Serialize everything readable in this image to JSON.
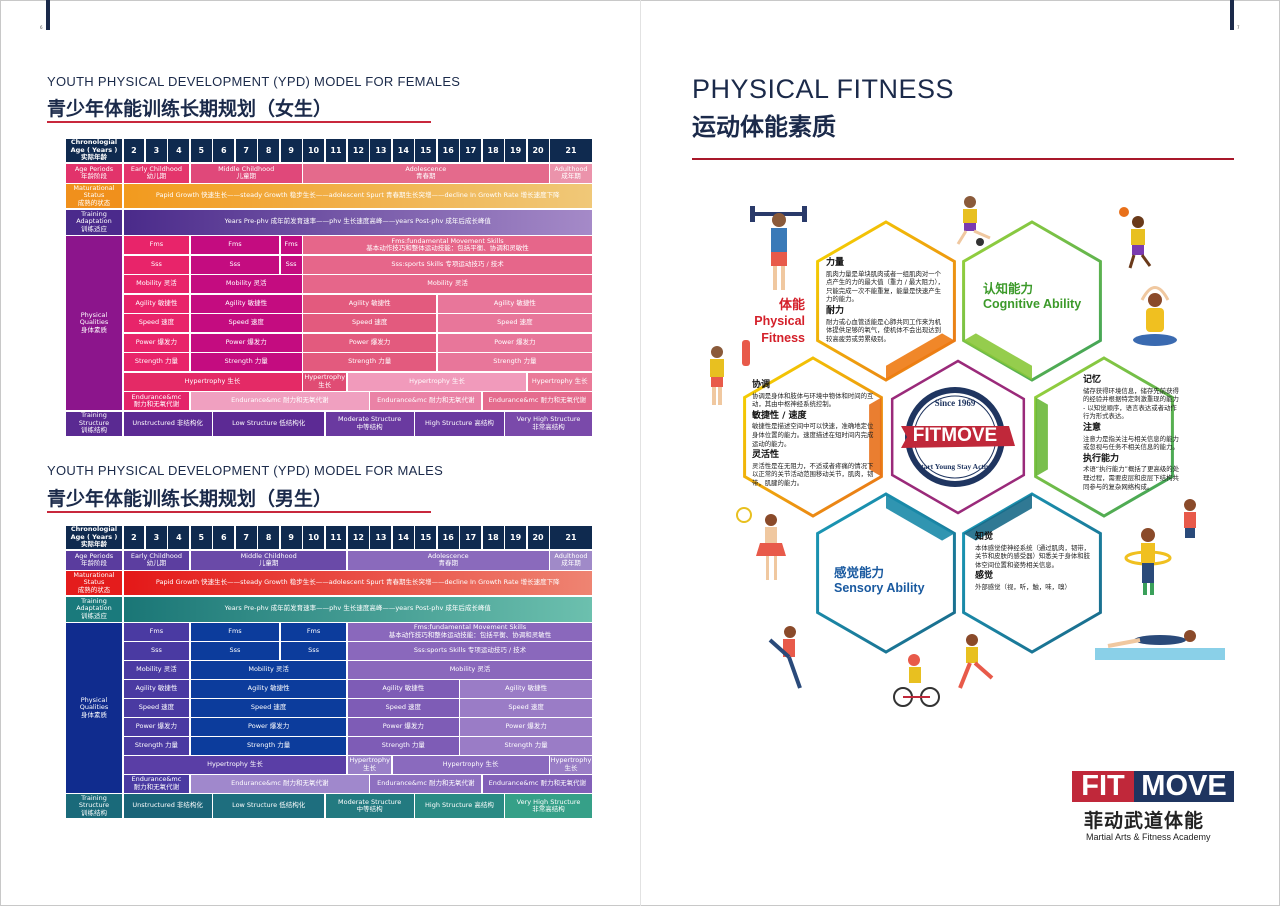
{
  "left_page": {
    "page_number": "6"
  },
  "right_page": {
    "page_number": "7"
  },
  "female": {
    "title_en": "YOUTH PHYSICAL DEVELOPMENT (YPD) MODEL FOR FEMALES",
    "title_zh": "青少年体能训练长期规划（女生）",
    "header_label": "Chronologial\nAge ( Years )\n实际年龄",
    "header_color": "#0f2a4f",
    "ages": [
      "2",
      "3",
      "4",
      "5",
      "6",
      "7",
      "8",
      "9",
      "10",
      "11",
      "12",
      "13",
      "14",
      "15",
      "16",
      "17",
      "18",
      "19",
      "20",
      "21"
    ],
    "rows_top": [
      {
        "label": "Age Periods\n年龄阶段",
        "label_color": "#e2336b",
        "cells": [
          {
            "t": "Early Childhood\n幼儿期",
            "a": [
              2,
              4
            ],
            "c": "#e4356c"
          },
          {
            "t": "Middle Childhood\n儿童期",
            "a": [
              5,
              9
            ],
            "c": "#e0487a"
          },
          {
            "t": "Adolescence\n青春期",
            "a": [
              10,
              20
            ],
            "c": "#e46a8c"
          },
          {
            "t": "Adulthood\n成年期",
            "a": [
              21,
              21
            ],
            "c": "#eb93ab"
          }
        ]
      },
      {
        "label": "Maturational\nStatus\n成熟的状态",
        "label_color": "#f0901c",
        "cells": [
          {
            "t": "Papid Growth 快速生长——steady Growth 稳步生长——adolescent Spurt 青春期生长突增——decline In Growth Rate 增长速度下降",
            "a": [
              2,
              21
            ],
            "c": "linear-gradient(90deg,#f29a1e,#f0c878)"
          }
        ]
      },
      {
        "label": "Training\nAdaptation\n训练适应",
        "label_color": "#4b2a8c",
        "cells": [
          {
            "t": "Years Pre-phv 成年前发育速率——phv 生长速度高峰——years Post-phv 成年后成长峰值",
            "a": [
              2,
              21
            ],
            "c": "linear-gradient(90deg,#4a2a8a,#a58ac8)"
          }
        ]
      }
    ],
    "physical": {
      "label": "Physical\nQualities\n身体素质",
      "label_color": "#8c158c",
      "rows": [
        [
          {
            "t": "Fms",
            "a": [
              2,
              4
            ],
            "c": "#e8246a"
          },
          {
            "t": "Fms",
            "a": [
              5,
              8
            ],
            "c": "#c40c80"
          },
          {
            "t": "Fms",
            "a": [
              9,
              9
            ],
            "c": "#c40c80"
          },
          {
            "t": "Fms:fundamental Movement Skills\n基本动作技巧和整体运动技能：包括平衡、协调和灵敏性",
            "a": [
              10,
              21
            ],
            "c": "#e6668a"
          }
        ],
        [
          {
            "t": "Sss",
            "a": [
              2,
              4
            ],
            "c": "#e8246a"
          },
          {
            "t": "Sss",
            "a": [
              5,
              8
            ],
            "c": "#c40c80"
          },
          {
            "t": "Sss",
            "a": [
              9,
              9
            ],
            "c": "#c40c80"
          },
          {
            "t": "Sss:sports Skills 专项运动技巧 / 技术",
            "a": [
              10,
              21
            ],
            "c": "#e6668a"
          }
        ],
        [
          {
            "t": "Mobility 灵活",
            "a": [
              2,
              4
            ],
            "c": "#e8246a"
          },
          {
            "t": "Mobility 灵活",
            "a": [
              5,
              9
            ],
            "c": "#c40c80"
          },
          {
            "t": "Mobility 灵活",
            "a": [
              10,
              21
            ],
            "c": "#e6668a"
          }
        ],
        [
          {
            "t": "Agility 敏捷性",
            "a": [
              2,
              4
            ],
            "c": "#e8246a"
          },
          {
            "t": "Agility 敏捷性",
            "a": [
              5,
              9
            ],
            "c": "#c40c80"
          },
          {
            "t": "Agility 敏捷性",
            "a": [
              10,
              15
            ],
            "c": "#e35a7e"
          },
          {
            "t": "Agility 敏捷性",
            "a": [
              16,
              21
            ],
            "c": "#e8769a"
          }
        ],
        [
          {
            "t": "Speed 速度",
            "a": [
              2,
              4
            ],
            "c": "#e8246a"
          },
          {
            "t": "Speed 速度",
            "a": [
              5,
              9
            ],
            "c": "#c40c80"
          },
          {
            "t": "Speed 速度",
            "a": [
              10,
              15
            ],
            "c": "#e35a7e"
          },
          {
            "t": "Speed 速度",
            "a": [
              16,
              21
            ],
            "c": "#e8769a"
          }
        ],
        [
          {
            "t": "Power 爆发力",
            "a": [
              2,
              4
            ],
            "c": "#e8246a"
          },
          {
            "t": "Power 爆发力",
            "a": [
              5,
              9
            ],
            "c": "#c40c80"
          },
          {
            "t": "Power 爆发力",
            "a": [
              10,
              15
            ],
            "c": "#e35a7e"
          },
          {
            "t": "Power 爆发力",
            "a": [
              16,
              21
            ],
            "c": "#e8769a"
          }
        ],
        [
          {
            "t": "Strength 力量",
            "a": [
              2,
              4
            ],
            "c": "#e8246a"
          },
          {
            "t": "Strength 力量",
            "a": [
              5,
              9
            ],
            "c": "#c40c80"
          },
          {
            "t": "Strength 力量",
            "a": [
              10,
              15
            ],
            "c": "#e35a7e"
          },
          {
            "t": "Strength 力量",
            "a": [
              16,
              21
            ],
            "c": "#e8769a"
          }
        ],
        [
          {
            "t": "Hypertrophy 生长",
            "a": [
              2,
              9
            ],
            "c": "#e42a66"
          },
          {
            "t": "Hypertrophy\n生长",
            "a": [
              10,
              11
            ],
            "c": "#e04c74"
          },
          {
            "t": "Hypertrophy 生长",
            "a": [
              12,
              19
            ],
            "c": "#f19abb"
          },
          {
            "t": "Hypertrophy 生长",
            "a": [
              20,
              21
            ],
            "c": "#ea7a98"
          }
        ],
        [
          {
            "t": "Endurance&mc\n耐力和无氧代谢",
            "a": [
              2,
              4
            ],
            "c": "#e4246a"
          },
          {
            "t": "Endurance&mc 耐力和无氧代谢",
            "a": [
              5,
              12
            ],
            "c": "#f0a0c0"
          },
          {
            "t": "Endurance&mc 耐力和无氧代谢",
            "a": [
              13,
              17
            ],
            "c": "#ea82a6"
          },
          {
            "t": "Endurance&mc 耐力和无氧代谢",
            "a": [
              18,
              21
            ],
            "c": "#e56c8e"
          }
        ]
      ]
    },
    "structure": {
      "label": "Training\nStructure\n训练结构",
      "label_color": "#5a2a92",
      "cells": [
        {
          "t": "Unstructured 非结构化",
          "a": [
            2,
            5
          ],
          "c": "#5c2a94"
        },
        {
          "t": "Low Structure 低结构化",
          "a": [
            6,
            10
          ],
          "c": "#5c2a94"
        },
        {
          "t": "Moderate Structure\n中等结构",
          "a": [
            11,
            14
          ],
          "c": "#6a3aa0"
        },
        {
          "t": "High Structure 高结构",
          "a": [
            15,
            18
          ],
          "c": "#6a3aa0"
        },
        {
          "t": "Very High Structure\n非常高结构",
          "a": [
            19,
            21
          ],
          "c": "#7a4aaa"
        }
      ]
    }
  },
  "male": {
    "title_en": "YOUTH PHYSICAL DEVELOPMENT (YPD) MODEL FOR MALES",
    "title_zh": "青少年体能训练长期规划（男生）",
    "header_label": "Chronologial\nAge ( Years )\n实际年龄",
    "header_color": "#0f2a4f",
    "ages": [
      "2",
      "3",
      "4",
      "5",
      "6",
      "7",
      "8",
      "9",
      "10",
      "11",
      "12",
      "13",
      "14",
      "15",
      "16",
      "17",
      "18",
      "19",
      "20",
      "21"
    ],
    "rows_top": [
      {
        "label": "Age Periods\n年龄阶段",
        "label_color": "#5a3c9e",
        "cells": [
          {
            "t": "Early Childhood\n幼儿期",
            "a": [
              2,
              4
            ],
            "c": "#5c3ea0"
          },
          {
            "t": "Middle Childhood\n儿童期",
            "a": [
              5,
              11
            ],
            "c": "#6a4aa8"
          },
          {
            "t": "Adolescence\n青春期",
            "a": [
              12,
              20
            ],
            "c": "#8a6abc"
          },
          {
            "t": "Adulthood\n成年期",
            "a": [
              21,
              21
            ],
            "c": "#a08ac8"
          }
        ]
      },
      {
        "label": "Maturational\nStatus\n成熟的状态",
        "label_color": "#e41c1c",
        "cells": [
          {
            "t": "Papid Growth 快速生长——steady Growth 稳步生长——adolescent Spurt 青春期生长突增——decline In Growth Rate 增长速度下降",
            "a": [
              2,
              21
            ],
            "c": "linear-gradient(90deg,#e41818,#ee8472)"
          }
        ]
      },
      {
        "label": "Training\nAdaptation\n训练适应",
        "label_color": "#1a7a7c",
        "cells": [
          {
            "t": "Years Pre-phv 成年前发育速率——phv 生长速度高峰——years Post-phv 成年后成长峰值",
            "a": [
              2,
              21
            ],
            "c": "linear-gradient(90deg,#1a7676,#6cc0ae)"
          }
        ]
      }
    ],
    "physical": {
      "label": "Physical\nQualities\n身体素质",
      "label_color": "#102c8e",
      "rows": [
        [
          {
            "t": "Fms",
            "a": [
              2,
              4
            ],
            "c": "#4a3aa2"
          },
          {
            "t": "Fms",
            "a": [
              5,
              8
            ],
            "c": "#0c3c9c"
          },
          {
            "t": "Fms",
            "a": [
              9,
              11
            ],
            "c": "#0c3c9c"
          },
          {
            "t": "Fms:fundamental Movement Skills\n基本动作技巧和整体运动技能：包括平衡、协调和灵敏性",
            "a": [
              12,
              21
            ],
            "c": "#8a68bc"
          }
        ],
        [
          {
            "t": "Sss",
            "a": [
              2,
              4
            ],
            "c": "#4a3aa2"
          },
          {
            "t": "Sss",
            "a": [
              5,
              8
            ],
            "c": "#0c3c9c"
          },
          {
            "t": "Sss",
            "a": [
              9,
              11
            ],
            "c": "#0c3c9c"
          },
          {
            "t": "Sss:sports Skills 专项运动技巧 / 技术",
            "a": [
              12,
              21
            ],
            "c": "#8a68bc"
          }
        ],
        [
          {
            "t": "Mobility 灵活",
            "a": [
              2,
              4
            ],
            "c": "#4a3aa2"
          },
          {
            "t": "Mobility 灵活",
            "a": [
              5,
              11
            ],
            "c": "#0c3c9c"
          },
          {
            "t": "Mobility 灵活",
            "a": [
              12,
              21
            ],
            "c": "#8a68bc"
          }
        ],
        [
          {
            "t": "Agility 敏捷性",
            "a": [
              2,
              4
            ],
            "c": "#4a3aa2"
          },
          {
            "t": "Agility 敏捷性",
            "a": [
              5,
              11
            ],
            "c": "#0c3c9c"
          },
          {
            "t": "Agility 敏捷性",
            "a": [
              12,
              16
            ],
            "c": "#7e5cb6"
          },
          {
            "t": "Agility 敏捷性",
            "a": [
              17,
              21
            ],
            "c": "#9a7cc6"
          }
        ],
        [
          {
            "t": "Speed 速度",
            "a": [
              2,
              4
            ],
            "c": "#4a3aa2"
          },
          {
            "t": "Speed 速度",
            "a": [
              5,
              11
            ],
            "c": "#0c3c9c"
          },
          {
            "t": "Speed 速度",
            "a": [
              12,
              16
            ],
            "c": "#7e5cb6"
          },
          {
            "t": "Speed 速度",
            "a": [
              17,
              21
            ],
            "c": "#9a7cc6"
          }
        ],
        [
          {
            "t": "Power 爆发力",
            "a": [
              2,
              4
            ],
            "c": "#4a3aa2"
          },
          {
            "t": "Power 爆发力",
            "a": [
              5,
              11
            ],
            "c": "#0c3c9c"
          },
          {
            "t": "Power 爆发力",
            "a": [
              12,
              16
            ],
            "c": "#7e5cb6"
          },
          {
            "t": "Power 爆发力",
            "a": [
              17,
              21
            ],
            "c": "#9a7cc6"
          }
        ],
        [
          {
            "t": "Strength 力量",
            "a": [
              2,
              4
            ],
            "c": "#4a3aa2"
          },
          {
            "t": "Strength 力量",
            "a": [
              5,
              11
            ],
            "c": "#0c3c9c"
          },
          {
            "t": "Strength 力量",
            "a": [
              12,
              16
            ],
            "c": "#7e5cb6"
          },
          {
            "t": "Strength 力量",
            "a": [
              17,
              21
            ],
            "c": "#9a7cc6"
          }
        ],
        [
          {
            "t": "Hypertrophy 生长",
            "a": [
              2,
              11
            ],
            "c": "#5a3ea6"
          },
          {
            "t": "Hypertrophy\n生长",
            "a": [
              12,
              13
            ],
            "c": "#9a80c8"
          },
          {
            "t": "Hypertrophy 生长",
            "a": [
              14,
              20
            ],
            "c": "#8a6abe"
          },
          {
            "t": "Hypertrophy\n生长",
            "a": [
              21,
              21
            ],
            "c": "#9a7ec6"
          }
        ],
        [
          {
            "t": "Endurance&mc\n耐力和无氧代谢",
            "a": [
              2,
              4
            ],
            "c": "#4a3aa2"
          },
          {
            "t": "Endurance&mc 耐力和无氧代谢",
            "a": [
              5,
              12
            ],
            "c": "#a088cc"
          },
          {
            "t": "Endurance&mc 耐力和无氧代谢",
            "a": [
              13,
              17
            ],
            "c": "#8e70c0"
          },
          {
            "t": "Endurance&mc 耐力和无氧代谢",
            "a": [
              18,
              21
            ],
            "c": "#8260b8"
          }
        ]
      ]
    },
    "structure": {
      "label": "Training\nStructure\n训练结构",
      "label_color": "#1a6a7a",
      "cells": [
        {
          "t": "Unstructured 非结构化",
          "a": [
            2,
            5
          ],
          "c": "#1a6478"
        },
        {
          "t": "Low Structure 低结构化",
          "a": [
            6,
            10
          ],
          "c": "#1e6e7e"
        },
        {
          "t": "Moderate Structure\n中等结构",
          "a": [
            11,
            14
          ],
          "c": "#237a80"
        },
        {
          "t": "High Structure 高结构",
          "a": [
            15,
            18
          ],
          "c": "#2a8a84"
        },
        {
          "t": "Very High Structure\n非常高结构",
          "a": [
            19,
            21
          ],
          "c": "#36a088"
        }
      ]
    }
  },
  "fitness": {
    "title_en": "PHYSICAL FITNESS",
    "title_zh": "运动体能素质",
    "physical": {
      "zh": "体能",
      "en": "Physical\nFitness",
      "color": "#d4202a"
    },
    "cognitive": {
      "zh": "认知能力",
      "en": "Cognitive Ability",
      "color": "#3c9a2a"
    },
    "sensory": {
      "zh": "感觉能力",
      "en": "Sensory Ability",
      "color": "#1a5aa0"
    },
    "strength_block": [
      {
        "h": "力量",
        "p": "肌肉力量是单块肌肉或者一组肌肉对一个点产生的力的最大值（重力 / 最大阻力），只能完成一次不能重复，能量是快速产生力的能力。"
      },
      {
        "h": "耐力",
        "p": "耐力或心血管适能是心肺共同工作来为机体提供足够的氧气，使机体不会出现达到较高疲劳或劳累级别。"
      }
    ],
    "coordination_block": [
      {
        "h": "协调",
        "p": "协调是身体和肢体与环境中物体和时间的互动，其由中枢神经系统控制。"
      },
      {
        "h": "敏捷性 / 速度",
        "p": "敏捷性是描述空间中可以快速，准确地定位身体位置的能力。速度描述在短时间内完成运动的能力。"
      },
      {
        "h": "灵活性",
        "p": "灵活性是在无阻力，不适或者疼痛的情况下以正常的关节活动范围移动关节，肌肉，韧带，肌腱的能力。"
      }
    ],
    "memory_block": [
      {
        "h": "记忆",
        "p": "储存获得环境信息，储存先前获得的经验并根据特定刺激重现的能力 - 以知觉顺序，语言表达或者动作行为形式表达。"
      },
      {
        "h": "注意",
        "p": "注意力是指关注与相关信息的能力或忽视与任务不相关信息的能力。"
      },
      {
        "h": "执行能力",
        "p": "术语“执行能力”概括了更高级的处理过程，需要皮层和皮层下结构共同参与的复杂网络构成。"
      }
    ],
    "perception_block": [
      {
        "h": "知觉",
        "p": "本体感觉使神经系统（通过肌肉，韧带，关节和皮肤的感受器）知悉关于身体和肢体空间位置和姿势相关信息。"
      },
      {
        "h": "感觉",
        "p": "外部感觉（视，听，触，味，嗅）"
      }
    ],
    "seal": {
      "top": "Since 1969",
      "name": "FITMOVE",
      "bottom": "Start Young Stay Active"
    }
  },
  "brand": {
    "fit": "FIT",
    "move": "MOVE",
    "zh": "菲动武道体能",
    "en": "Martial Arts & Fitness Academy",
    "red": "#c0283a",
    "navy": "#1f3560"
  }
}
